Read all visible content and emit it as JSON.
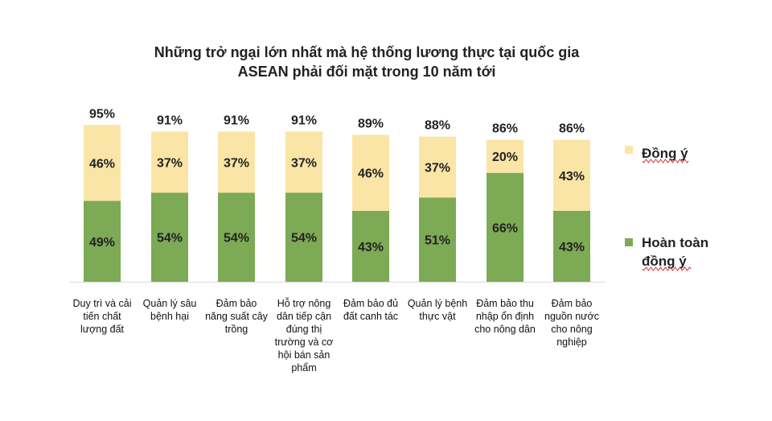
{
  "chart_data": {
    "type": "bar",
    "stacked": true,
    "title": [
      "Những trở ngại lớn nhất mà hệ thống lương thực tại quốc gia",
      "ASEAN phải đối mặt trong 10 năm tới"
    ],
    "categories": [
      [
        "Duy trì và cải",
        "tiến chất",
        "lượng đất"
      ],
      [
        "Quản lý sâu",
        "bệnh hại"
      ],
      [
        "Đảm bảo",
        "năng suất cây",
        "trồng"
      ],
      [
        "Hỗ trợ nông",
        "dân tiếp cận",
        "đúng thị",
        "trường và cơ",
        "hội bán sản",
        "phẩm"
      ],
      [
        "Đảm bảo đủ",
        "đất canh tác"
      ],
      [
        "Quản lý bệnh",
        "thực vật"
      ],
      [
        "Đảm bảo thu",
        "nhập ổn định",
        "cho nông dân"
      ],
      [
        "Đảm bảo",
        "nguồn nước",
        "cho nông",
        "nghiệp"
      ]
    ],
    "totals": [
      "95%",
      "91%",
      "91%",
      "91%",
      "89%",
      "88%",
      "86%",
      "86%"
    ],
    "series": [
      {
        "name": [
          "Hoàn toàn",
          "đồng ý"
        ],
        "color": "#7daa55",
        "values": [
          49,
          54,
          54,
          54,
          43,
          51,
          66,
          43
        ],
        "labels": [
          "49%",
          "54%",
          "54%",
          "54%",
          "43%",
          "51%",
          "66%",
          "43%"
        ]
      },
      {
        "name": [
          "Đồng ý"
        ],
        "color": "#fbe5a6",
        "values": [
          46,
          37,
          37,
          37,
          46,
          37,
          20,
          43
        ],
        "labels": [
          "46%",
          "37%",
          "37%",
          "37%",
          "46%",
          "37%",
          "20%",
          "43%"
        ]
      }
    ],
    "legend": "right",
    "grid": false
  }
}
